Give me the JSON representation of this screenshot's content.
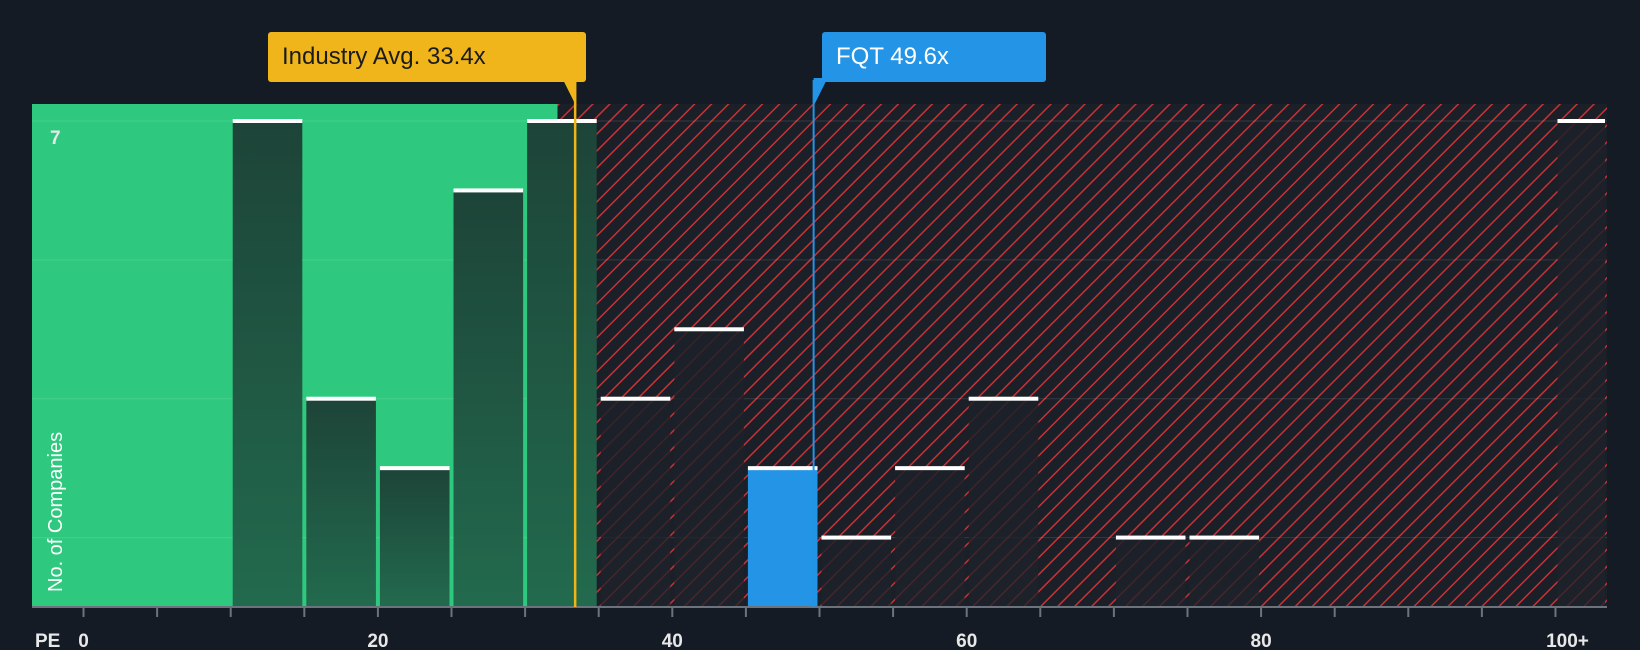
{
  "chart_data": {
    "type": "bar",
    "xlabel": "PE",
    "ylabel": "No. of Companies",
    "x_ticks": [
      "0",
      "20",
      "40",
      "60",
      "80",
      "100+"
    ],
    "y_tick_label": "7",
    "xlim": [
      -3.5,
      103.5
    ],
    "ylim": [
      0,
      7
    ],
    "bin_width": 5,
    "bins": [
      {
        "x0": 10,
        "x1": 15,
        "count": 7
      },
      {
        "x0": 15,
        "x1": 20,
        "count": 3
      },
      {
        "x0": 20,
        "x1": 25,
        "count": 2
      },
      {
        "x0": 25,
        "x1": 30,
        "count": 6
      },
      {
        "x0": 30,
        "x1": 35,
        "count": 7
      },
      {
        "x0": 35,
        "x1": 40,
        "count": 3
      },
      {
        "x0": 40,
        "x1": 45,
        "count": 4
      },
      {
        "x0": 45,
        "x1": 50,
        "count": 2,
        "highlight": true
      },
      {
        "x0": 50,
        "x1": 55,
        "count": 1
      },
      {
        "x0": 55,
        "x1": 60,
        "count": 2
      },
      {
        "x0": 60,
        "x1": 65,
        "count": 3
      },
      {
        "x0": 70,
        "x1": 75,
        "count": 1
      },
      {
        "x0": 75,
        "x1": 80,
        "count": 1
      },
      {
        "x0": 100,
        "x1": 103.5,
        "count": 7
      }
    ],
    "industry_avg": {
      "label": "Industry Avg. 33.4x",
      "value": 33.4
    },
    "company": {
      "label": "FQT 49.6x",
      "value": 49.6
    },
    "fair_range_end": 32.2
  },
  "colors": {
    "background": "#151b24",
    "fair_zone": "#2ec97e",
    "overvalued_hatch": "#c83234",
    "bar_dark": "#1e4a3c",
    "highlight_bar": "#2394e6",
    "industry_line": "#f0b51a",
    "company_line": "#2394e6"
  }
}
